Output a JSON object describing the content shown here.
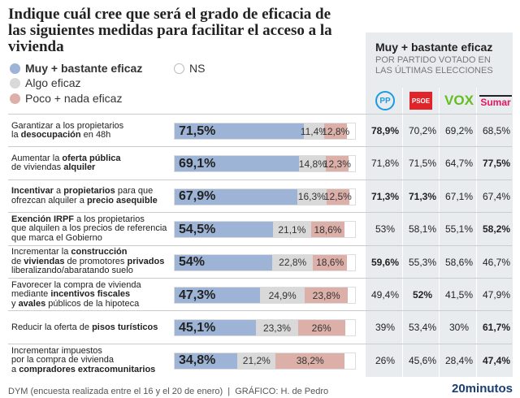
{
  "title": "Indique cuál cree que será el grado de eficacia de las siguientes medidas para facilitar el acceso a la vivienda",
  "legend": {
    "muy": "Muy + bastante eficaz",
    "algo": "Algo eficaz",
    "poco": "Poco + nada eficaz",
    "ns": "NS"
  },
  "colors": {
    "muy": "#9db4d6",
    "algo": "#d9d9d9",
    "poco": "#dcb0a8",
    "ns": "#ffffff",
    "panel": "#e9ecef"
  },
  "panel": {
    "title": "Muy + bastante eficaz",
    "subtitle": "POR PARTIDO VOTADO EN LAS ÚLTIMAS ELECCIONES",
    "parties": [
      {
        "name": "PP",
        "icon": "pp-logo"
      },
      {
        "name": "PSOE",
        "icon": "psoe-logo"
      },
      {
        "name": "VOX",
        "icon": "vox-logo"
      },
      {
        "name": "Sumar",
        "icon": "sumar-logo"
      }
    ]
  },
  "chart_data": {
    "type": "bar",
    "stacked": true,
    "series": [
      {
        "name": "Muy + bastante eficaz"
      },
      {
        "name": "Algo eficaz"
      },
      {
        "name": "Poco + nada eficaz"
      },
      {
        "name": "NS"
      }
    ],
    "rows": [
      {
        "label": [
          [
            "Garantizar a los propietarios",
            0
          ],
          [
            "\nla ",
            0
          ],
          [
            "desocupación",
            1
          ],
          [
            " en 48h",
            0
          ]
        ],
        "values": [
          "71,5%",
          "11,4%",
          "12,8%"
        ],
        "nums": [
          71.5,
          11.4,
          12.8
        ],
        "party": [
          "78,9%",
          "70,2%",
          "69,2%",
          "68,5%"
        ],
        "bold": [
          0
        ]
      },
      {
        "label": [
          [
            "Aumentar la ",
            0
          ],
          [
            "oferta pública",
            1
          ],
          [
            "\nde viviendas ",
            0
          ],
          [
            "alquiler",
            1
          ]
        ],
        "values": [
          "69,1%",
          "14,8%",
          "12,3%"
        ],
        "nums": [
          69.1,
          14.8,
          12.3
        ],
        "party": [
          "71,8%",
          "71,5%",
          "64,7%",
          "77,5%"
        ],
        "bold": [
          3
        ]
      },
      {
        "label": [
          [
            "Incentivar",
            1
          ],
          [
            " a ",
            0
          ],
          [
            "propietarios",
            1
          ],
          [
            " para que\nofrezcan alquiler a ",
            0
          ],
          [
            "precio asequible",
            1
          ]
        ],
        "values": [
          "67,9%",
          "16,3%",
          "12,5%"
        ],
        "nums": [
          67.9,
          16.3,
          12.5
        ],
        "party": [
          "71,3%",
          "71,3%",
          "67,1%",
          "67,4%"
        ],
        "bold": [
          0,
          1
        ]
      },
      {
        "label": [
          [
            "Exención IRPF",
            1
          ],
          [
            " a los propietarios\nque alquilen a los precios de referencia\nque marca el Gobierno",
            0
          ]
        ],
        "values": [
          "54,5%",
          "21,1%",
          "18,6%"
        ],
        "nums": [
          54.5,
          21.1,
          18.6
        ],
        "party": [
          "53%",
          "58,1%",
          "55,1%",
          "58,2%"
        ],
        "bold": [
          3
        ]
      },
      {
        "label": [
          [
            "Incrementar la ",
            0
          ],
          [
            "construcción",
            1
          ],
          [
            "\nde ",
            0
          ],
          [
            "viviendas",
            1
          ],
          [
            " de promotores ",
            0
          ],
          [
            "privados",
            1
          ],
          [
            "\nliberalizando/abaratando suelo",
            0
          ]
        ],
        "values": [
          "54%",
          "22,8%",
          "18,6%"
        ],
        "nums": [
          54,
          22.8,
          18.6
        ],
        "party": [
          "59,6%",
          "55,3%",
          "58,6%",
          "46,7%"
        ],
        "bold": [
          0
        ]
      },
      {
        "label": [
          [
            "Favorecer la compra de vivienda\nmediante ",
            0
          ],
          [
            "incentivos fiscales",
            1
          ],
          [
            "\ny ",
            0
          ],
          [
            "avales",
            1
          ],
          [
            " públicos de la hipoteca",
            0
          ]
        ],
        "values": [
          "47,3%",
          "24,9%",
          "23,8%"
        ],
        "nums": [
          47.3,
          24.9,
          23.8
        ],
        "party": [
          "49,4%",
          "52%",
          "41,5%",
          "47,9%"
        ],
        "bold": [
          1
        ]
      },
      {
        "label": [
          [
            "Reducir la oferta de ",
            0
          ],
          [
            "pisos turísticos",
            1
          ]
        ],
        "values": [
          "45,1%",
          "23,3%",
          "26%"
        ],
        "nums": [
          45.1,
          23.3,
          26
        ],
        "party": [
          "39%",
          "53,4%",
          "30%",
          "61,7%"
        ],
        "bold": [
          3
        ]
      },
      {
        "label": [
          [
            "Incrementar impuestos\npor la compra de vivienda\na ",
            0
          ],
          [
            "compradores extracomunitarios",
            1
          ]
        ],
        "values": [
          "34,8%",
          "21,2%",
          "38,2%"
        ],
        "nums": [
          34.8,
          21.2,
          38.2
        ],
        "party": [
          "26%",
          "45,6%",
          "28,4%",
          "47,4%"
        ],
        "bold": [
          3
        ]
      }
    ]
  },
  "footer": {
    "source": "DYM (encuesta realizada entre el 16 y el 20 de enero)  |  GRÁFICO: H. de Pedro",
    "brand": "20minutos"
  }
}
